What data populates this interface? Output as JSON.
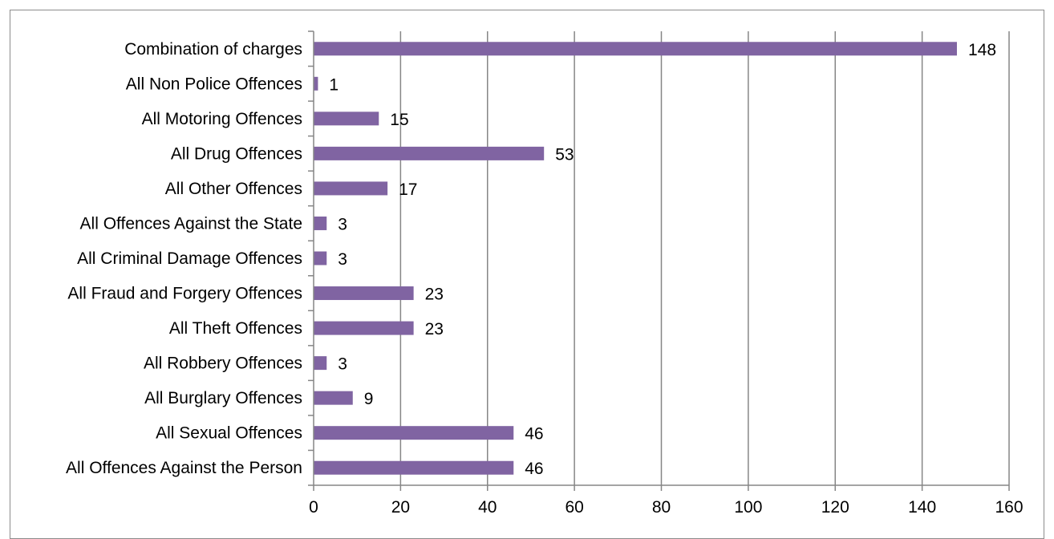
{
  "chart_data": {
    "type": "bar",
    "orientation": "horizontal",
    "categories": [
      "Combination of charges",
      "All Non Police Offences",
      "All Motoring Offences",
      "All Drug Offences",
      "All Other Offences",
      "All Offences Against the State",
      "All Criminal Damage Offences",
      "All Fraud and Forgery Offences",
      "All Theft Offences",
      "All Robbery Offences",
      "All Burglary Offences",
      "All Sexual Offences",
      "All Offences Against the Person"
    ],
    "values": [
      148,
      1,
      15,
      53,
      17,
      3,
      3,
      23,
      23,
      3,
      9,
      46,
      46
    ],
    "data_labels": [
      "148",
      "1",
      "15",
      "53",
      "17",
      "3",
      "3",
      "23",
      "23",
      "3",
      "9",
      "46",
      "46"
    ],
    "xlim": [
      0,
      160
    ],
    "x_ticks": [
      0,
      20,
      40,
      60,
      80,
      100,
      120,
      140,
      160
    ],
    "x_tick_labels": [
      "0",
      "20",
      "40",
      "60",
      "80",
      "100",
      "120",
      "140",
      "160"
    ],
    "title": "",
    "xlabel": "",
    "ylabel": "",
    "grid": true,
    "legend": "none",
    "bar_color": "#8064a2",
    "grid_color": "#868686"
  }
}
